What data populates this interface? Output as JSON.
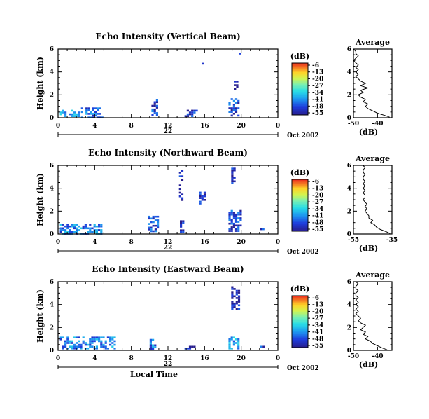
{
  "chart_data": [
    {
      "type": "heatmap",
      "title": "Echo Intensity (Vertical Beam)",
      "ylabel": "Height (km)",
      "y_ticks": [
        "0",
        "2",
        "4",
        "6"
      ],
      "x_ticks": [
        "0",
        "4",
        "8",
        "12",
        "16",
        "20",
        "0"
      ],
      "ylim": [
        0,
        6
      ],
      "xlim": [
        0,
        24
      ],
      "x_unit": "hours (local time)",
      "date_day": "22",
      "date_label": "Oct 2002",
      "colorbar": {
        "label": "(dB)",
        "ticks": [
          "-6",
          "-13",
          "-20",
          "-27",
          "-34",
          "-41",
          "-48",
          "-55"
        ],
        "range": [
          -55,
          -6
        ]
      },
      "echo_regions": [
        {
          "t0": 0.2,
          "t1": 2.2,
          "h0": 0.1,
          "h1": 0.7,
          "db": -40
        },
        {
          "t0": 2.5,
          "t1": 4.8,
          "h0": 0.1,
          "h1": 0.9,
          "db": -44
        },
        {
          "t0": 10.2,
          "t1": 10.8,
          "h0": 0.2,
          "h1": 1.6,
          "db": -48
        },
        {
          "t0": 13.8,
          "t1": 15.2,
          "h0": 0.2,
          "h1": 0.7,
          "db": -50
        },
        {
          "t0": 18.6,
          "t1": 19.8,
          "h0": 0.2,
          "h1": 1.7,
          "db": -47
        },
        {
          "t0": 19.2,
          "t1": 19.5,
          "h0": 2.2,
          "h1": 3.4,
          "db": -52
        },
        {
          "t0": 19.5,
          "t1": 19.9,
          "h0": 5.6,
          "h1": 6.0,
          "db": -52
        },
        {
          "t0": 15.7,
          "t1": 15.8,
          "h0": 4.7,
          "h1": 4.8,
          "db": -52
        }
      ],
      "average": {
        "title": "Average",
        "xlabel": "(dB)",
        "x_ticks": [
          "-50",
          "-40"
        ],
        "xlim": [
          -50,
          -34
        ],
        "y_ticks": [
          "0",
          "2",
          "4",
          "6"
        ],
        "ylim": [
          0,
          6
        ],
        "height": [
          0.05,
          0.2,
          0.4,
          0.6,
          0.8,
          1.0,
          1.2,
          1.4,
          1.6,
          1.8,
          2.0,
          2.2,
          2.4,
          2.6,
          2.8,
          3.0,
          3.2,
          3.4,
          3.6,
          3.8,
          4.0,
          4.2,
          4.4,
          4.6,
          4.8,
          5.0,
          5.2,
          5.4,
          5.6,
          5.8,
          6.0
        ],
        "db": [
          -35,
          -37,
          -40,
          -42,
          -44,
          -45,
          -44,
          -46,
          -45,
          -47,
          -48,
          -46,
          -47,
          -44,
          -47,
          -45,
          -47,
          -48,
          -49,
          -48,
          -49,
          -48,
          -49,
          -48,
          -49,
          -50,
          -49,
          -48,
          -49,
          -49,
          -50
        ]
      }
    },
    {
      "type": "heatmap",
      "title": "Echo Intensity (Northward Beam)",
      "ylabel": "Height (km)",
      "y_ticks": [
        "0",
        "2",
        "4",
        "6"
      ],
      "x_ticks": [
        "0",
        "4",
        "8",
        "12",
        "16",
        "20",
        "0"
      ],
      "ylim": [
        0,
        6
      ],
      "xlim": [
        0,
        24
      ],
      "x_unit": "hours (local time)",
      "date_day": "22",
      "date_label": "Oct 2002",
      "colorbar": {
        "label": "(dB)",
        "ticks": [
          "-6",
          "-13",
          "-20",
          "-27",
          "-34",
          "-41",
          "-48",
          "-55"
        ],
        "range": [
          -55,
          -6
        ]
      },
      "echo_regions": [
        {
          "t0": 0.2,
          "t1": 4.8,
          "h0": 0.1,
          "h1": 0.9,
          "db": -42
        },
        {
          "t0": 9.8,
          "t1": 10.9,
          "h0": 0.2,
          "h1": 1.6,
          "db": -47
        },
        {
          "t0": 13.2,
          "t1": 13.6,
          "h0": 2.8,
          "h1": 5.6,
          "db": -52
        },
        {
          "t0": 13.3,
          "t1": 13.7,
          "h0": 0.2,
          "h1": 1.2,
          "db": -52
        },
        {
          "t0": 15.4,
          "t1": 15.9,
          "h0": 2.6,
          "h1": 3.7,
          "db": -52
        },
        {
          "t0": 18.6,
          "t1": 20.0,
          "h0": 0.2,
          "h1": 2.1,
          "db": -47
        },
        {
          "t0": 18.9,
          "t1": 19.3,
          "h0": 4.4,
          "h1": 5.8,
          "db": -52
        },
        {
          "t0": 21.8,
          "t1": 22.3,
          "h0": 0.3,
          "h1": 0.5,
          "db": -48
        }
      ],
      "average": {
        "title": "Average",
        "xlabel": "(dB)",
        "x_ticks": [
          "-55",
          "-35"
        ],
        "xlim": [
          -55,
          -35
        ],
        "y_ticks": [
          "0",
          "2",
          "4",
          "6"
        ],
        "ylim": [
          0,
          6
        ],
        "height": [
          0.05,
          0.2,
          0.4,
          0.6,
          0.8,
          1.0,
          1.2,
          1.4,
          1.6,
          1.8,
          2.0,
          2.2,
          2.4,
          2.6,
          2.8,
          3.0,
          3.2,
          3.4,
          3.6,
          3.8,
          4.0,
          4.2,
          4.4,
          4.6,
          4.8,
          5.0,
          5.2,
          5.4,
          5.6,
          5.8,
          6.0
        ],
        "db": [
          -36,
          -38,
          -41,
          -43,
          -44,
          -46,
          -45,
          -47,
          -47,
          -48,
          -49,
          -48,
          -49,
          -48,
          -49,
          -50,
          -49,
          -49,
          -50,
          -49,
          -50,
          -49,
          -50,
          -49,
          -50,
          -50,
          -49,
          -50,
          -50,
          -49,
          -50
        ]
      }
    },
    {
      "type": "heatmap",
      "title": "Echo Intensity (Eastward Beam)",
      "ylabel": "Height (km)",
      "y_ticks": [
        "0",
        "2",
        "4",
        "6"
      ],
      "x_ticks": [
        "0",
        "4",
        "8",
        "12",
        "16",
        "20",
        "0"
      ],
      "ylim": [
        0,
        6
      ],
      "xlim": [
        0,
        24
      ],
      "x_unit": "hours (local time)",
      "date_day": "22",
      "date_label": "Oct 2002",
      "xlabel": "Local Time",
      "colorbar": {
        "label": "(dB)",
        "ticks": [
          "-6",
          "-13",
          "-20",
          "-27",
          "-34",
          "-41",
          "-48",
          "-55"
        ],
        "range": [
          -55,
          -6
        ]
      },
      "echo_regions": [
        {
          "t0": 0.2,
          "t1": 6.2,
          "h0": 0.1,
          "h1": 1.2,
          "db": -42
        },
        {
          "t0": 10.0,
          "t1": 10.6,
          "h0": 0.1,
          "h1": 1.0,
          "db": -44
        },
        {
          "t0": 13.8,
          "t1": 14.8,
          "h0": 0.2,
          "h1": 0.4,
          "db": -50
        },
        {
          "t0": 18.6,
          "t1": 19.7,
          "h0": 0.2,
          "h1": 1.2,
          "db": -40
        },
        {
          "t0": 18.9,
          "t1": 19.7,
          "h0": 3.6,
          "h1": 5.6,
          "db": -52
        },
        {
          "t0": 21.6,
          "t1": 22.6,
          "h0": 0.2,
          "h1": 0.4,
          "db": -50
        }
      ],
      "average": {
        "title": "Average",
        "xlabel": "(dB)",
        "x_ticks": [
          "-50",
          "-40"
        ],
        "xlim": [
          -50,
          -34
        ],
        "y_ticks": [
          "0",
          "2",
          "4",
          "6"
        ],
        "ylim": [
          0,
          6
        ],
        "height": [
          0.05,
          0.2,
          0.4,
          0.6,
          0.8,
          1.0,
          1.2,
          1.4,
          1.6,
          1.8,
          2.0,
          2.2,
          2.4,
          2.6,
          2.8,
          3.0,
          3.2,
          3.4,
          3.6,
          3.8,
          4.0,
          4.2,
          4.4,
          4.6,
          4.8,
          5.0,
          5.2,
          5.4,
          5.6,
          5.8,
          6.0
        ],
        "db": [
          -36,
          -38,
          -40,
          -42,
          -43,
          -45,
          -44,
          -46,
          -45,
          -47,
          -46,
          -45,
          -47,
          -48,
          -47,
          -48,
          -49,
          -48,
          -49,
          -48,
          -49,
          -48,
          -49,
          -48,
          -49,
          -49,
          -48,
          -49,
          -49,
          -48,
          -49
        ]
      }
    }
  ]
}
